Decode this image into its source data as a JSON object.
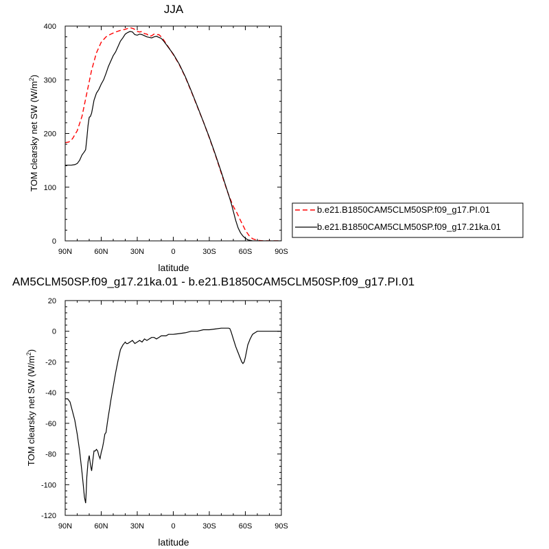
{
  "chart_data": [
    {
      "type": "line",
      "title": "JJA",
      "xlabel": "latitude",
      "ylabel": "TOM clearsky net SW (W/m",
      "ylabel_sup": "2",
      "ylabel_close": ")",
      "xlim": [
        90,
        -90
      ],
      "ylim": [
        0,
        400
      ],
      "x_ticks": [
        90,
        60,
        30,
        0,
        -30,
        -60,
        -90
      ],
      "x_tick_labels": [
        "90N",
        "60N",
        "30N",
        "0",
        "30S",
        "60S",
        "90S"
      ],
      "y_ticks": [
        0,
        100,
        200,
        300,
        400
      ],
      "y_tick_labels": [
        "0",
        "100",
        "200",
        "300",
        "400"
      ],
      "legend_position": "right",
      "series": [
        {
          "name": "b.e21.B1850CAM5CLM50SP.f09_g17.PI.01",
          "color": "#ff0000",
          "dash": "dashed",
          "x": [
            90,
            87,
            84,
            80,
            76,
            72,
            68,
            64,
            60,
            56,
            52,
            48,
            44,
            40,
            36,
            33,
            30,
            28,
            26,
            24,
            22,
            20,
            18,
            16,
            14,
            12,
            10,
            8,
            5,
            2,
            0,
            -5,
            -10,
            -15,
            -20,
            -25,
            -30,
            -35,
            -40,
            -45,
            -48,
            -50,
            -53,
            -56,
            -60,
            -63,
            -66,
            -70,
            -75,
            -80,
            -90
          ],
          "y": [
            183,
            184,
            190,
            205,
            232,
            275,
            318,
            350,
            370,
            380,
            385,
            389,
            392,
            394,
            397,
            395,
            390,
            389,
            390,
            386,
            385,
            381,
            382,
            385,
            384,
            384,
            380,
            374,
            364,
            354,
            347,
            328,
            305,
            278,
            250,
            222,
            192,
            160,
            126,
            92,
            75,
            64,
            52,
            38,
            20,
            10,
            4,
            1,
            0,
            0,
            0
          ]
        },
        {
          "name": "b.e21.B1850CAM5CLM50SP.f09_g17.21ka.01",
          "color": "#000000",
          "dash": "solid",
          "x": [
            90,
            85,
            82,
            80,
            78,
            76,
            74,
            73,
            72,
            71,
            70,
            69,
            68,
            67,
            66,
            64,
            62,
            60,
            58,
            56,
            54,
            52,
            50,
            48,
            46,
            44,
            42,
            40,
            38,
            36,
            34,
            32,
            30,
            28,
            26,
            24,
            22,
            20,
            18,
            16,
            14,
            12,
            10,
            8,
            5,
            2,
            0,
            -5,
            -10,
            -15,
            -20,
            -25,
            -30,
            -35,
            -40,
            -45,
            -48,
            -50,
            -52,
            -54,
            -56,
            -58,
            -60,
            -62,
            -64,
            -66,
            -70,
            -75,
            -80,
            -90
          ],
          "y": [
            141,
            141,
            142,
            144,
            150,
            160,
            166,
            170,
            190,
            215,
            230,
            232,
            238,
            250,
            262,
            275,
            282,
            292,
            300,
            312,
            325,
            335,
            345,
            352,
            362,
            372,
            378,
            385,
            388,
            390,
            389,
            384,
            383,
            385,
            384,
            382,
            380,
            379,
            378,
            380,
            381,
            379,
            377,
            372,
            363,
            354,
            348,
            329,
            306,
            279,
            251,
            222,
            193,
            161,
            128,
            93,
            72,
            55,
            38,
            24,
            15,
            9,
            5,
            2,
            1,
            0,
            0,
            0,
            0,
            0
          ]
        }
      ]
    },
    {
      "type": "line",
      "title": "AM5CLM50SP.f09_g17.21ka.01 - b.e21.B1850CAM5CLM50SP.f09_g17.PI.01",
      "xlabel": "latitude",
      "ylabel": "TOM clearsky net SW (W/m",
      "ylabel_sup": "2",
      "ylabel_close": ")",
      "xlim": [
        90,
        -90
      ],
      "ylim": [
        -120,
        20
      ],
      "x_ticks": [
        90,
        60,
        30,
        0,
        -30,
        -60,
        -90
      ],
      "x_tick_labels": [
        "90N",
        "60N",
        "30N",
        "0",
        "30S",
        "60S",
        "90S"
      ],
      "y_ticks": [
        -120,
        -100,
        -80,
        -60,
        -40,
        -20,
        0,
        20
      ],
      "y_tick_labels": [
        "-120",
        "-100",
        "-80",
        "-60",
        "-40",
        "-20",
        "0",
        "20"
      ],
      "series": [
        {
          "color": "#000000",
          "dash": "solid",
          "x": [
            90,
            88,
            86,
            84,
            82,
            80,
            78,
            76,
            75,
            74,
            73,
            72.5,
            72,
            71,
            70,
            69,
            68,
            67,
            66,
            65,
            64,
            63,
            62,
            61,
            60,
            59,
            58,
            57,
            56,
            55,
            54,
            53,
            52,
            50,
            48,
            46,
            44,
            42,
            40,
            39,
            38,
            36,
            34,
            32,
            30,
            28,
            26,
            24,
            22,
            20,
            18,
            16,
            14,
            12,
            10,
            8,
            6,
            4,
            2,
            0,
            -5,
            -10,
            -15,
            -20,
            -25,
            -30,
            -35,
            -40,
            -42,
            -44,
            -46,
            -47,
            -48,
            -50,
            -52,
            -54,
            -56,
            -57,
            -58,
            -59,
            -60,
            -61,
            -62,
            -64,
            -66,
            -68,
            -70,
            -75,
            -80,
            -90
          ],
          "y": [
            -44,
            -44,
            -46,
            -52,
            -58,
            -67,
            -78,
            -92,
            -100,
            -108,
            -112,
            -105,
            -95,
            -85,
            -81,
            -87,
            -91,
            -84,
            -78,
            -78,
            -77,
            -78,
            -81,
            -83,
            -79,
            -76,
            -72,
            -67,
            -66,
            -60,
            -55,
            -50,
            -45,
            -36,
            -27,
            -19,
            -12,
            -9,
            -7,
            -8,
            -8,
            -7,
            -6,
            -8,
            -7,
            -6,
            -7,
            -5,
            -6,
            -5,
            -4,
            -4,
            -5,
            -4,
            -3,
            -3,
            -3,
            -2,
            -2,
            -2,
            -1.5,
            -1,
            0,
            0,
            1,
            1,
            1.5,
            2,
            2,
            2,
            2,
            1.8,
            0,
            -5,
            -10,
            -14,
            -18,
            -20,
            -21,
            -20,
            -17,
            -13,
            -9,
            -5,
            -2,
            -1,
            0,
            0,
            0,
            0
          ]
        }
      ]
    }
  ]
}
